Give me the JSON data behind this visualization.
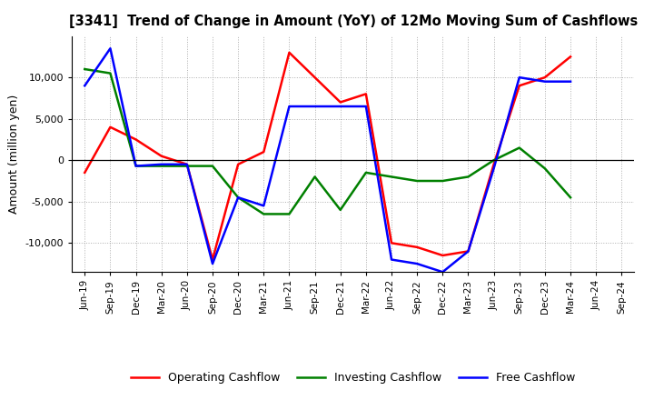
{
  "title": "[3341]  Trend of Change in Amount (YoY) of 12Mo Moving Sum of Cashflows",
  "ylabel": "Amount (million yen)",
  "x_labels": [
    "Jun-19",
    "Sep-19",
    "Dec-19",
    "Mar-20",
    "Jun-20",
    "Sep-20",
    "Dec-20",
    "Mar-21",
    "Jun-21",
    "Sep-21",
    "Dec-21",
    "Mar-22",
    "Jun-22",
    "Sep-22",
    "Dec-22",
    "Mar-23",
    "Jun-23",
    "Sep-23",
    "Dec-23",
    "Mar-24",
    "Jun-24",
    "Sep-24"
  ],
  "operating": [
    -1500,
    4000,
    2500,
    500,
    -500,
    -12000,
    -500,
    1000,
    13000,
    10000,
    7000,
    8000,
    -10000,
    -10500,
    -11500,
    -11000,
    -500,
    9000,
    10000,
    12500,
    null,
    null
  ],
  "investing": [
    11000,
    10500,
    -700,
    -700,
    -700,
    -700,
    -4500,
    -6500,
    -6500,
    -2000,
    -6000,
    -1500,
    -2000,
    -2500,
    -2500,
    -2000,
    0,
    1500,
    -1000,
    -4500,
    null,
    null
  ],
  "free": [
    9000,
    13500,
    -700,
    -500,
    -500,
    -12500,
    -4500,
    -5500,
    6500,
    6500,
    6500,
    6500,
    -12000,
    -12500,
    -13500,
    -11000,
    -1000,
    10000,
    9500,
    9500,
    null,
    null
  ],
  "operating_color": "#ff0000",
  "investing_color": "#008000",
  "free_color": "#0000ff",
  "ylim": [
    -13500,
    15000
  ],
  "yticks": [
    -10000,
    -5000,
    0,
    5000,
    10000
  ],
  "background_color": "#ffffff",
  "grid_color": "#999999"
}
